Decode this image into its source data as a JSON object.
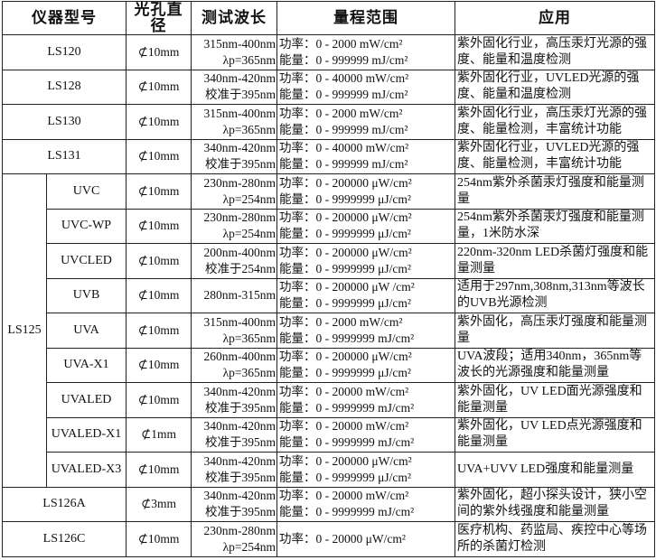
{
  "headers": [
    "仪器型号",
    "光孔直径",
    "测试波长",
    "量程范围",
    "应用"
  ],
  "group_label": "LS125",
  "rows": [
    {
      "model": "LS120",
      "aperture": "⊄10mm",
      "wavelength": [
        "315nm-400nm",
        "λp=365nm"
      ],
      "range": [
        "功率：0 - 2000 mW/cm²",
        "能量：0 - 999999 mJ/cm²"
      ],
      "application": "紫外固化行业，高压汞灯光源的强度、能量和温度检测"
    },
    {
      "model": "LS128",
      "aperture": "⊄10mm",
      "wavelength": [
        "340nm-420nm",
        "校准于395nm"
      ],
      "range": [
        "功率：0 - 40000 mW/cm²",
        "能量：0 - 999999 mJ/cm²"
      ],
      "application": "紫外固化行业，UVLED光源的强度、能量和温度检测"
    },
    {
      "model": "LS130",
      "aperture": "⊄10mm",
      "wavelength": [
        "315nm-400nm",
        "λp=365nm"
      ],
      "range": [
        "功率：0 - 2000 mW/cm²",
        "能量：0 - 999999 mJ/cm²"
      ],
      "application": "紫外固化行业，高压汞灯光源的强度、能量检测，丰富统计功能"
    },
    {
      "model": "LS131",
      "aperture": "⊄10mm",
      "wavelength": [
        "340nm-420nm",
        "校准于395nm"
      ],
      "range": [
        "功率：0 - 40000 mW/cm²",
        "能量：0 - 999999 mJ/cm²"
      ],
      "application": "紫外固化行业，UVLED光源的强度、能量检测，丰富统计功能"
    }
  ],
  "ls125_rows": [
    {
      "model": "UVC",
      "aperture": "⊄10mm",
      "wavelength": [
        "230nm-280nm",
        "λp=254nm"
      ],
      "range": [
        "功率：0 - 200000 μW/cm²",
        "能量：0 - 9999999 μJ/cm²"
      ],
      "application": "254nm紫外杀菌汞灯强度和能量测量"
    },
    {
      "model": "UVC-WP",
      "aperture": "⊄10mm",
      "wavelength": [
        "230nm-280nm",
        "λp=254nm"
      ],
      "range": [
        "功率：0 - 200000 μW/cm²",
        "能量：0 - 9999999 μJ/cm²"
      ],
      "application": "254nm紫外杀菌汞灯强度和能量测量，1米防水深"
    },
    {
      "model": "UVCLED",
      "aperture": "⊄10mm",
      "wavelength": [
        "200nm-400nm",
        "校准于254nm"
      ],
      "range": [
        "功率：0 - 200000 μW/cm²",
        "能量：0 - 9999999 μJ/cm²"
      ],
      "application": "220nm-320nm LED杀菌灯强度和能量测量"
    },
    {
      "model": "UVB",
      "aperture": "⊄10mm",
      "wavelength": [
        "280nm-315nm"
      ],
      "range": [
        "功率：0 - 200000 μW /cm²",
        "能量：0 - 9999999 μJ/cm²"
      ],
      "application": "适用于297nm,308nm,313nm等波长的UVB光源检测"
    },
    {
      "model": "UVA",
      "aperture": "⊄10mm",
      "wavelength": [
        "315nm-400nm",
        "λp=365nm"
      ],
      "range": [
        "功率：0 - 2000 mW/cm²",
        "能量：0 - 9999999 mJ/cm²"
      ],
      "application": "紫外固化，高压汞灯强度和能量测量"
    },
    {
      "model": "UVA-X1",
      "aperture": "⊄10mm",
      "wavelength": [
        "260nm-400nm",
        "λp=365nm"
      ],
      "range": [
        "功率：0 - 200000 μW/cm²",
        "能量：0 - 9999999 μJ/cm²"
      ],
      "application": "UVA波段；适用340nm，365nm等波长的光源强度和能量测量"
    },
    {
      "model": "UVALED",
      "aperture": "⊄10mm",
      "wavelength": [
        "340nm-420nm",
        "校准于395nm"
      ],
      "range": [
        "功率：0 - 20000 mW/cm²",
        "能量：0 - 9999999 mJ/cm²"
      ],
      "application": "紫外固化，UV LED面光源强度和能量测量"
    },
    {
      "model": "UVALED-X1",
      "aperture": "⊄1mm",
      "wavelength": [
        "340nm-420nm",
        "校准于395nm"
      ],
      "range": [
        "功率：0 - 20000 mW/cm²",
        "能量：0 - 9999999 mJ/cm²"
      ],
      "application": "紫外固化，UV LED点光源强度和能量测量"
    },
    {
      "model": "UVALED-X3",
      "aperture": "⊄10mm",
      "wavelength": [
        "340nm-420nm",
        "校准于395nm"
      ],
      "range": [
        "功率：0 - 200000 μW/cm²",
        "能量：0 - 9999999 μJ/cm²"
      ],
      "application": "UVA+UVV LED强度和能量测量"
    }
  ],
  "tail_rows": [
    {
      "model": "LS126A",
      "aperture": "⊄3mm",
      "wavelength": [
        "340nm-420nm",
        "校准于395nm"
      ],
      "range": [
        "功率：0 - 20000 mW/cm²",
        "能量：0 - 9999999 mJ/cm²"
      ],
      "application": "紫外固化，超小探头设计，狭小空间的紫外线强度和能量测量"
    },
    {
      "model": "LS126C",
      "aperture": "⊄10mm",
      "wavelength": [
        "230nm-280nm",
        "λp=254nm"
      ],
      "range": [
        "功率：0 - 20000 μW/cm²"
      ],
      "application": "医疗机构、药监局、疾控中心等场所的杀菌灯检测"
    }
  ]
}
